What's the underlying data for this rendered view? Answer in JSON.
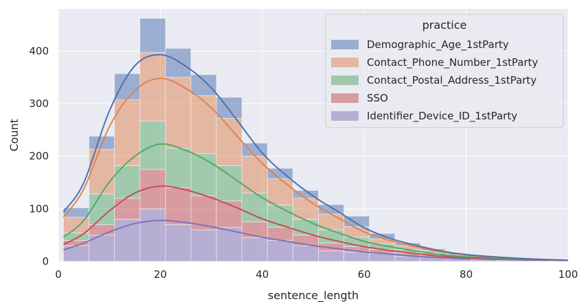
{
  "chart_data": {
    "type": "histogram",
    "stacked": true,
    "kde": true,
    "xlabel": "sentence_length",
    "ylabel": "Count",
    "xlim": [
      0,
      100
    ],
    "ylim": [
      0,
      480
    ],
    "xticks": [
      0,
      20,
      40,
      60,
      80,
      100
    ],
    "yticks": [
      0,
      100,
      200,
      300,
      400
    ],
    "grid": true,
    "legend": {
      "title": "practice",
      "position": "top-right"
    },
    "bin_edges": [
      1,
      6,
      11,
      16,
      21,
      26,
      31,
      36,
      41,
      46,
      51,
      56,
      61,
      66,
      71,
      76,
      81,
      86,
      91,
      96,
      100
    ],
    "series": [
      {
        "name": "Demographic_Age_1stParty",
        "color": "#4c72b0",
        "counts": [
          18,
          25,
          50,
          65,
          55,
          40,
          40,
          25,
          20,
          15,
          18,
          20,
          10,
          5,
          3,
          2,
          1,
          1,
          0,
          0
        ],
        "kde": [
          [
            1,
            10
          ],
          [
            5,
            12
          ],
          [
            10,
            30
          ],
          [
            15,
            47
          ],
          [
            20,
            45
          ],
          [
            25,
            42
          ],
          [
            30,
            38
          ],
          [
            35,
            30
          ],
          [
            40,
            20
          ],
          [
            45,
            16
          ],
          [
            50,
            14
          ],
          [
            55,
            12
          ],
          [
            60,
            8
          ],
          [
            65,
            4
          ],
          [
            70,
            3
          ],
          [
            75,
            2
          ],
          [
            80,
            1
          ],
          [
            90,
            0
          ],
          [
            100,
            0
          ]
        ]
      },
      {
        "name": "Contact_Phone_Number_1stParty",
        "color": "#dd8452",
        "counts": [
          30,
          85,
          125,
          130,
          135,
          110,
          90,
          70,
          50,
          40,
          30,
          20,
          10,
          8,
          5,
          3,
          1,
          0,
          0,
          0
        ],
        "kde": [
          [
            1,
            38
          ],
          [
            5,
            60
          ],
          [
            10,
            105
          ],
          [
            15,
            125
          ],
          [
            20,
            125
          ],
          [
            25,
            118
          ],
          [
            30,
            105
          ],
          [
            35,
            85
          ],
          [
            40,
            65
          ],
          [
            45,
            50
          ],
          [
            50,
            38
          ],
          [
            55,
            28
          ],
          [
            60,
            18
          ],
          [
            65,
            12
          ],
          [
            70,
            8
          ],
          [
            75,
            5
          ],
          [
            80,
            3
          ],
          [
            90,
            1
          ],
          [
            100,
            0
          ]
        ]
      },
      {
        "name": "Contact_Postal_Address_1stParty",
        "color": "#55a868",
        "counts": [
          14,
          58,
          62,
          92,
          75,
          80,
          67,
          55,
          42,
          30,
          25,
          18,
          10,
          6,
          4,
          2,
          1,
          0,
          0,
          0
        ],
        "kde": [
          [
            1,
            14
          ],
          [
            5,
            25
          ],
          [
            10,
            55
          ],
          [
            15,
            70
          ],
          [
            20,
            80
          ],
          [
            25,
            75
          ],
          [
            30,
            66
          ],
          [
            35,
            52
          ],
          [
            40,
            40
          ],
          [
            45,
            30
          ],
          [
            50,
            22
          ],
          [
            55,
            16
          ],
          [
            60,
            10
          ],
          [
            65,
            7
          ],
          [
            70,
            5
          ],
          [
            75,
            3
          ],
          [
            80,
            2
          ],
          [
            90,
            1
          ],
          [
            100,
            0
          ]
        ]
      },
      {
        "name": "SSO",
        "color": "#c44e52",
        "counts": [
          10,
          20,
          40,
          75,
          70,
          65,
          50,
          30,
          25,
          20,
          15,
          10,
          8,
          6,
          4,
          2,
          1,
          0,
          0,
          0
        ],
        "kde": [
          [
            1,
            10
          ],
          [
            5,
            18
          ],
          [
            10,
            40
          ],
          [
            15,
            58
          ],
          [
            20,
            65
          ],
          [
            25,
            62
          ],
          [
            30,
            55
          ],
          [
            35,
            46
          ],
          [
            40,
            35
          ],
          [
            45,
            27
          ],
          [
            50,
            20
          ],
          [
            55,
            14
          ],
          [
            60,
            10
          ],
          [
            65,
            7
          ],
          [
            70,
            5
          ],
          [
            75,
            3
          ],
          [
            80,
            2
          ],
          [
            90,
            1
          ],
          [
            100,
            0
          ]
        ]
      },
      {
        "name": "Identifier_Device_ID_1stParty",
        "color": "#8172b3",
        "counts": [
          30,
          50,
          80,
          100,
          70,
          60,
          65,
          45,
          40,
          30,
          20,
          18,
          15,
          10,
          8,
          5,
          3,
          2,
          2,
          1
        ],
        "kde": [
          [
            1,
            22
          ],
          [
            5,
            35
          ],
          [
            10,
            56
          ],
          [
            15,
            72
          ],
          [
            20,
            78
          ],
          [
            25,
            74
          ],
          [
            30,
            66
          ],
          [
            35,
            56
          ],
          [
            40,
            46
          ],
          [
            45,
            38
          ],
          [
            50,
            30
          ],
          [
            55,
            24
          ],
          [
            60,
            18
          ],
          [
            65,
            14
          ],
          [
            70,
            10
          ],
          [
            75,
            7
          ],
          [
            80,
            5
          ],
          [
            90,
            3
          ],
          [
            100,
            2
          ]
        ]
      }
    ]
  }
}
